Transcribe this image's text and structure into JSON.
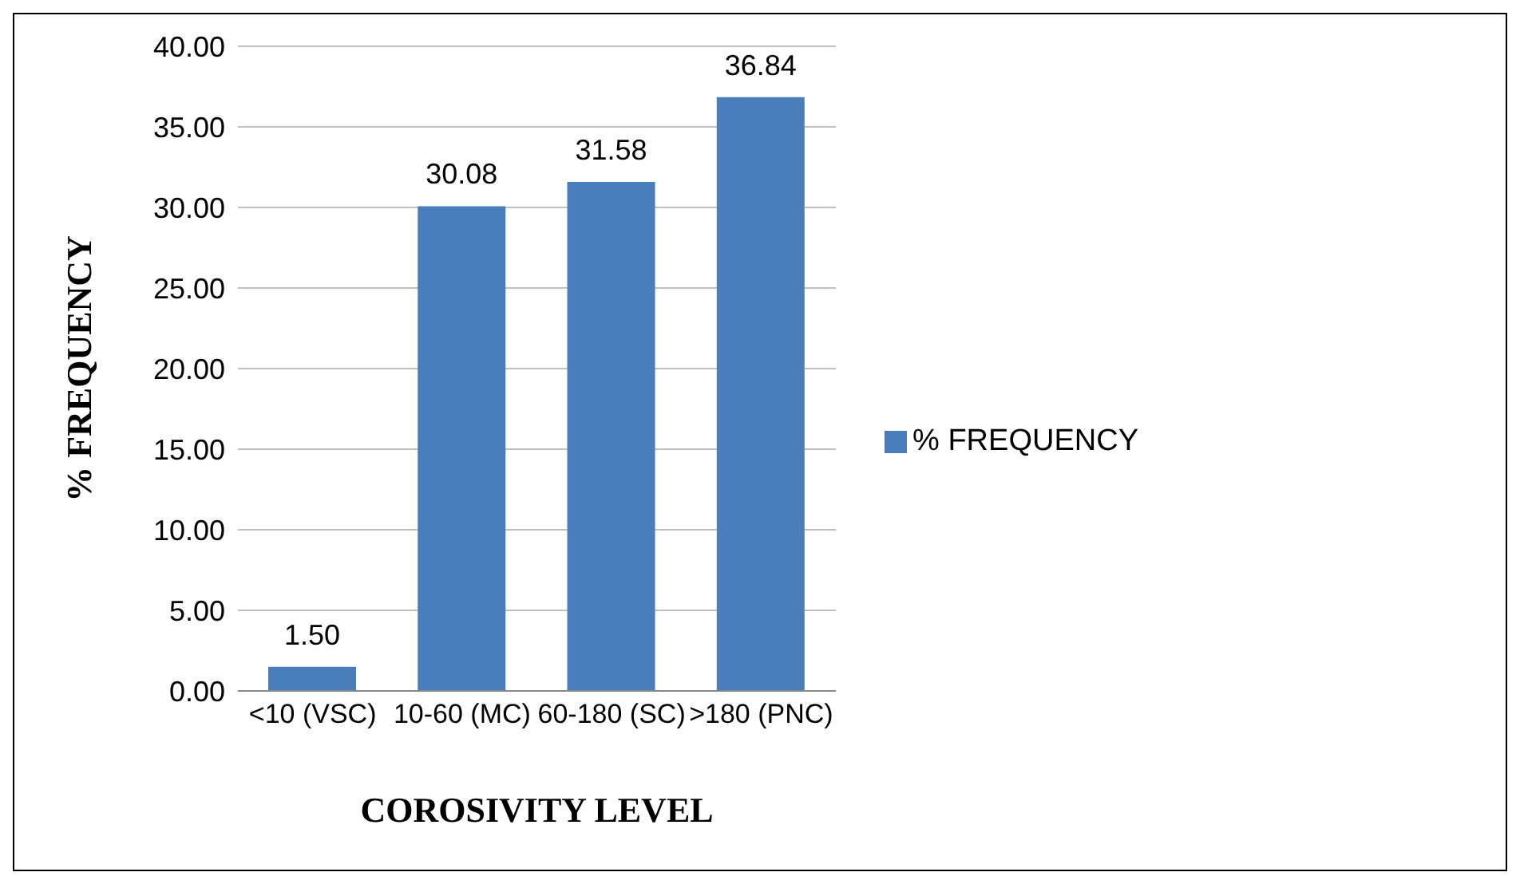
{
  "chart_data": {
    "type": "bar",
    "xlabel": "COROSIVITY LEVEL",
    "ylabel": "% FREQUENCY",
    "categories": [
      "<10 (VSC)",
      "10-60 (MC)",
      "60-180 (SC)",
      ">180 (PNC)"
    ],
    "series": [
      {
        "name": "% FREQUENCY",
        "color": "#4a7ebb",
        "values": [
          1.5,
          30.08,
          31.58,
          36.84
        ],
        "value_labels": [
          "1.50",
          "30.08",
          "31.58",
          "36.84"
        ]
      }
    ],
    "ylim": [
      0,
      40
    ],
    "yticks": [
      {
        "value": 0,
        "label": "0.00"
      },
      {
        "value": 5,
        "label": "5.00"
      },
      {
        "value": 10,
        "label": "10.00"
      },
      {
        "value": 15,
        "label": "15.00"
      },
      {
        "value": 20,
        "label": "20.00"
      },
      {
        "value": 25,
        "label": "25.00"
      },
      {
        "value": 30,
        "label": "30.00"
      },
      {
        "value": 35,
        "label": "35.00"
      },
      {
        "value": 40,
        "label": "40.00"
      }
    ],
    "grid": "y",
    "legend": "right"
  }
}
